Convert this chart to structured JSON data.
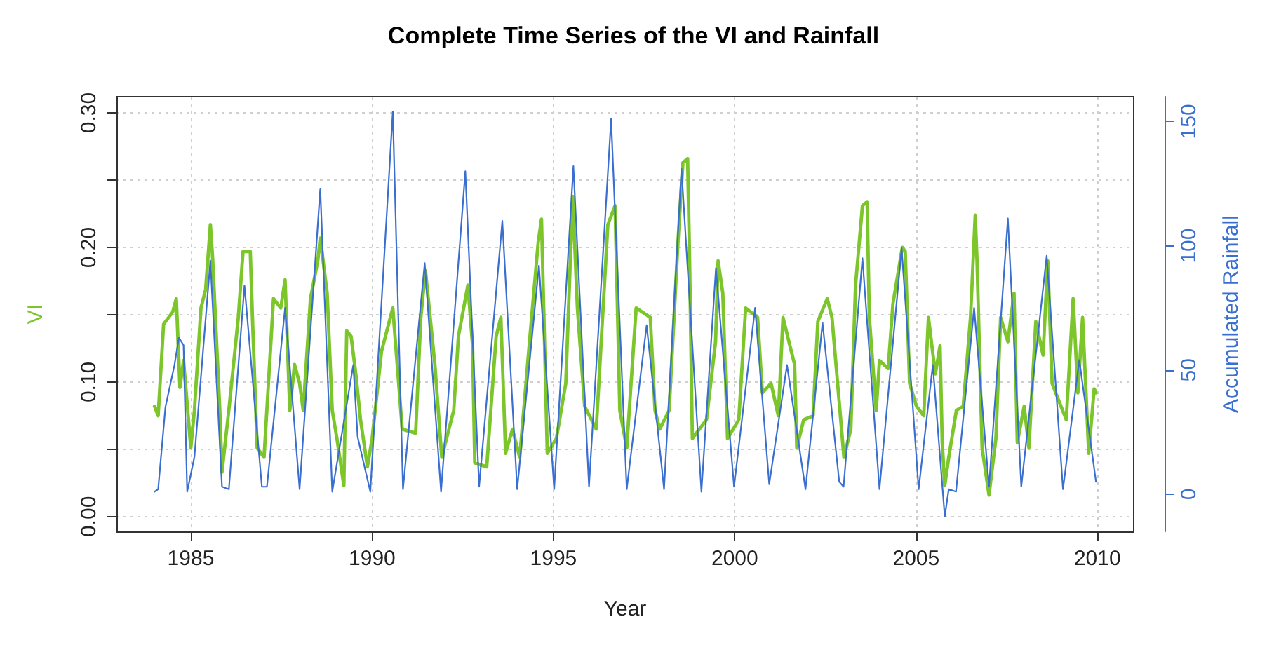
{
  "chart_data": {
    "type": "line",
    "title": "Complete Time Series of the VI and Rainfall",
    "xlabel": "Year",
    "ylabel": "VI",
    "y2label": "Accumulated Rainfall",
    "xlim": [
      1982.95,
      2011
    ],
    "xticks": [
      1985,
      1990,
      1995,
      2000,
      2005,
      2010
    ],
    "ylim": [
      -0.011,
      0.312
    ],
    "yticks": [
      {
        "value": 0,
        "label": "0.00"
      },
      {
        "value": 0.05,
        "label": null
      },
      {
        "value": 0.1,
        "label": "0.10"
      },
      {
        "value": 0.15,
        "label": null
      },
      {
        "value": 0.2,
        "label": "0.20"
      },
      {
        "value": 0.25,
        "label": null
      },
      {
        "value": 0.3,
        "label": "0.30"
      }
    ],
    "y2lim": [
      -15,
      160
    ],
    "y2ticks": [
      0,
      50,
      100,
      150
    ],
    "grid": true,
    "marker": "none",
    "line_style": "solid",
    "series": [
      {
        "color": "#7cc52a",
        "x": [
          1984.0,
          1984.1,
          1984.25,
          1984.5,
          1984.6,
          1984.7,
          1984.8,
          1985.0,
          1985.1,
          1985.28,
          1985.41,
          1985.54,
          1985.6,
          1985.8,
          1985.86,
          1986.06,
          1986.31,
          1986.44,
          1986.64,
          1986.7,
          1986.83,
          1987.02,
          1987.28,
          1987.48,
          1987.6,
          1987.73,
          1987.86,
          1988.0,
          1988.1,
          1988.3,
          1988.5,
          1988.57,
          1988.76,
          1988.9,
          1989.03,
          1989.22,
          1989.3,
          1989.42,
          1989.55,
          1989.68,
          1989.87,
          1990.0,
          1990.26,
          1990.57,
          1990.83,
          1991.2,
          1991.34,
          1991.47,
          1991.73,
          1991.92,
          1992.25,
          1992.38,
          1992.64,
          1992.77,
          1992.83,
          1993.16,
          1993.42,
          1993.55,
          1993.68,
          1993.87,
          1994.07,
          1994.33,
          1994.58,
          1994.67,
          1994.83,
          1995.08,
          1995.34,
          1995.53,
          1995.66,
          1995.86,
          1996.18,
          1996.5,
          1996.7,
          1996.83,
          1997.02,
          1997.28,
          1997.67,
          1997.8,
          1997.93,
          1998.19,
          1998.44,
          1998.57,
          1998.7,
          1998.75,
          1998.83,
          1999.22,
          1999.47,
          1999.54,
          1999.67,
          1999.8,
          2000.11,
          2000.3,
          2000.63,
          2000.76,
          2001.0,
          2001.2,
          2001.33,
          2001.52,
          2001.65,
          2001.71,
          2001.9,
          2002.16,
          2002.29,
          2002.55,
          2002.68,
          2002.88,
          2003.01,
          2003.2,
          2003.33,
          2003.52,
          2003.65,
          2003.71,
          2003.9,
          2003.99,
          2004.23,
          2004.36,
          2004.62,
          2004.7,
          2004.82,
          2005.01,
          2005.21,
          2005.34,
          2005.53,
          2005.66,
          2005.72,
          2005.79,
          2005.9,
          2006.11,
          2006.3,
          2006.5,
          2006.63,
          2006.68,
          2006.82,
          2007.01,
          2007.2,
          2007.33,
          2007.53,
          2007.7,
          2007.79,
          2007.98,
          2008.11,
          2008.3,
          2008.5,
          2008.63,
          2008.75,
          2008.95,
          2009.14,
          2009.33,
          2009.46,
          2009.59,
          2009.76,
          2009.91,
          2009.96
        ],
        "values": [
          0.082,
          0.075,
          0.143,
          0.152,
          0.162,
          0.096,
          0.116,
          0.051,
          0.079,
          0.155,
          0.169,
          0.217,
          0.193,
          0.079,
          0.033,
          0.082,
          0.148,
          0.197,
          0.197,
          0.148,
          0.051,
          0.044,
          0.162,
          0.155,
          0.176,
          0.079,
          0.113,
          0.099,
          0.079,
          0.162,
          0.19,
          0.207,
          0.166,
          0.079,
          0.058,
          0.023,
          0.138,
          0.134,
          0.106,
          0.072,
          0.037,
          0.058,
          0.123,
          0.155,
          0.065,
          0.062,
          0.147,
          0.183,
          0.113,
          0.044,
          0.079,
          0.134,
          0.172,
          0.127,
          0.04,
          0.037,
          0.134,
          0.148,
          0.047,
          0.065,
          0.044,
          0.127,
          0.204,
          0.221,
          0.047,
          0.058,
          0.099,
          0.238,
          0.155,
          0.082,
          0.065,
          0.217,
          0.231,
          0.079,
          0.051,
          0.155,
          0.148,
          0.079,
          0.065,
          0.079,
          0.207,
          0.263,
          0.266,
          0.197,
          0.058,
          0.072,
          0.13,
          0.19,
          0.166,
          0.058,
          0.072,
          0.155,
          0.148,
          0.092,
          0.099,
          0.075,
          0.148,
          0.127,
          0.113,
          0.051,
          0.072,
          0.075,
          0.145,
          0.162,
          0.148,
          0.085,
          0.044,
          0.065,
          0.172,
          0.231,
          0.234,
          0.148,
          0.079,
          0.116,
          0.11,
          0.158,
          0.2,
          0.197,
          0.099,
          0.082,
          0.075,
          0.148,
          0.106,
          0.127,
          0.055,
          0.023,
          0.044,
          0.079,
          0.082,
          0.148,
          0.224,
          0.19,
          0.051,
          0.016,
          0.058,
          0.148,
          0.13,
          0.166,
          0.055,
          0.082,
          0.051,
          0.145,
          0.12,
          0.19,
          0.099,
          0.085,
          0.072,
          0.162,
          0.092,
          0.148,
          0.047,
          0.095,
          0.092
        ]
      },
      {
        "color": "#3a6fd0",
        "axis": "y2",
        "x": [
          1984.0,
          1984.1,
          1984.3,
          1984.55,
          1984.67,
          1984.8,
          1984.9,
          1985.1,
          1985.54,
          1985.86,
          1986.05,
          1986.48,
          1986.96,
          1987.1,
          1987.6,
          1988.0,
          1988.57,
          1988.9,
          1989.48,
          1989.6,
          1989.95,
          1990.57,
          1990.85,
          1991.45,
          1991.9,
          1992.57,
          1992.95,
          1993.59,
          1994.0,
          1994.6,
          1995.02,
          1995.55,
          1995.98,
          1996.59,
          1997.02,
          1997.57,
          1998.05,
          1998.53,
          1999.08,
          1999.48,
          1999.98,
          2000.56,
          2000.95,
          2001.44,
          2001.95,
          2002.42,
          2002.88,
          2003.0,
          2003.52,
          2003.99,
          2004.6,
          2005.07,
          2005.46,
          2005.79,
          2005.9,
          2006.1,
          2006.6,
          2007.01,
          2007.53,
          2007.9,
          2008.6,
          2009.05,
          2009.5,
          2009.96
        ],
        "values": [
          1,
          2,
          35,
          52,
          63,
          60,
          1,
          15,
          94,
          3,
          2,
          84,
          3,
          3,
          75,
          2,
          123,
          1,
          52,
          23,
          1,
          154,
          2,
          93,
          1,
          130,
          3,
          110,
          2,
          92,
          2,
          132,
          3,
          151,
          2,
          68,
          2,
          131,
          1,
          91,
          3,
          75,
          4,
          52,
          2,
          69,
          5,
          3,
          95,
          2,
          99,
          2,
          52,
          -9,
          2,
          1,
          75,
          3,
          111,
          3,
          96,
          2,
          54,
          5
        ]
      }
    ]
  }
}
